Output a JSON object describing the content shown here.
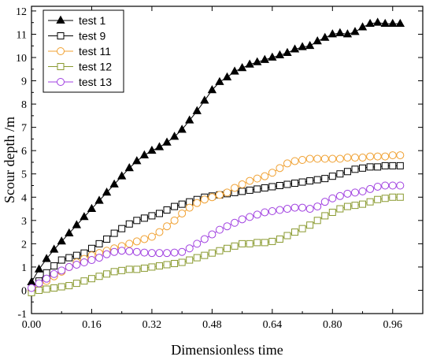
{
  "chart_data": {
    "type": "line",
    "title": "",
    "xlabel": "Dimensionless time",
    "ylabel": "Scour depth /m",
    "xlim": [
      0,
      1.04
    ],
    "ylim": [
      -1,
      12.2
    ],
    "xticks": [
      0.0,
      0.16,
      0.32,
      0.48,
      0.64,
      0.8,
      0.96
    ],
    "xtick_labels": [
      "0.00",
      "0.16",
      "0.32",
      "0.48",
      "0.64",
      "0.80",
      "0.96"
    ],
    "yticks": [
      -1,
      0,
      1,
      2,
      3,
      4,
      5,
      6,
      7,
      8,
      9,
      10,
      11,
      12
    ],
    "ytick_labels": [
      "-1",
      "0",
      "1",
      "2",
      "3",
      "4",
      "5",
      "6",
      "7",
      "8",
      "9",
      "10",
      "11",
      "12"
    ],
    "grid": false,
    "legend_position": "top-left",
    "series": [
      {
        "name": "test 1",
        "color": "#000000",
        "marker": "triangle-filled",
        "x": [
          0.0,
          0.02,
          0.04,
          0.06,
          0.08,
          0.1,
          0.12,
          0.14,
          0.16,
          0.18,
          0.2,
          0.22,
          0.24,
          0.26,
          0.28,
          0.3,
          0.32,
          0.34,
          0.36,
          0.38,
          0.4,
          0.42,
          0.44,
          0.46,
          0.48,
          0.5,
          0.52,
          0.54,
          0.56,
          0.58,
          0.6,
          0.62,
          0.64,
          0.66,
          0.68,
          0.7,
          0.72,
          0.74,
          0.76,
          0.78,
          0.8,
          0.82,
          0.84,
          0.86,
          0.88,
          0.9,
          0.92,
          0.94,
          0.96,
          0.98
        ],
        "y": [
          0.35,
          0.9,
          1.35,
          1.75,
          2.1,
          2.45,
          2.8,
          3.15,
          3.5,
          3.85,
          4.2,
          4.55,
          4.9,
          5.25,
          5.55,
          5.8,
          6.0,
          6.15,
          6.35,
          6.6,
          6.9,
          7.3,
          7.7,
          8.15,
          8.6,
          8.95,
          9.15,
          9.4,
          9.55,
          9.7,
          9.8,
          9.9,
          10.0,
          10.1,
          10.2,
          10.35,
          10.45,
          10.5,
          10.7,
          10.85,
          11.0,
          11.05,
          11.0,
          11.1,
          11.3,
          11.45,
          11.5,
          11.45,
          11.45,
          11.45
        ]
      },
      {
        "name": "test 9",
        "color": "#000000",
        "marker": "square-open",
        "x": [
          0.0,
          0.02,
          0.04,
          0.06,
          0.08,
          0.1,
          0.12,
          0.14,
          0.16,
          0.18,
          0.2,
          0.22,
          0.24,
          0.26,
          0.28,
          0.3,
          0.32,
          0.34,
          0.36,
          0.38,
          0.4,
          0.42,
          0.44,
          0.46,
          0.48,
          0.5,
          0.52,
          0.54,
          0.56,
          0.58,
          0.6,
          0.62,
          0.64,
          0.66,
          0.68,
          0.7,
          0.72,
          0.74,
          0.76,
          0.78,
          0.8,
          0.82,
          0.84,
          0.86,
          0.88,
          0.9,
          0.92,
          0.94,
          0.96,
          0.98
        ],
        "y": [
          0.0,
          0.4,
          0.75,
          1.05,
          1.3,
          1.4,
          1.5,
          1.6,
          1.8,
          2.0,
          2.2,
          2.45,
          2.65,
          2.85,
          3.0,
          3.1,
          3.2,
          3.3,
          3.45,
          3.6,
          3.7,
          3.8,
          3.9,
          4.0,
          4.05,
          4.1,
          4.15,
          4.2,
          4.25,
          4.3,
          4.35,
          4.4,
          4.45,
          4.5,
          4.55,
          4.6,
          4.65,
          4.7,
          4.75,
          4.8,
          4.9,
          5.0,
          5.1,
          5.2,
          5.25,
          5.3,
          5.3,
          5.35,
          5.35,
          5.35
        ]
      },
      {
        "name": "test 11",
        "color": "#f0a030",
        "marker": "circle-open",
        "x": [
          0.0,
          0.02,
          0.04,
          0.06,
          0.08,
          0.1,
          0.12,
          0.14,
          0.16,
          0.18,
          0.2,
          0.22,
          0.24,
          0.26,
          0.28,
          0.3,
          0.32,
          0.34,
          0.36,
          0.38,
          0.4,
          0.42,
          0.44,
          0.46,
          0.48,
          0.5,
          0.52,
          0.54,
          0.56,
          0.58,
          0.6,
          0.62,
          0.64,
          0.66,
          0.68,
          0.7,
          0.72,
          0.74,
          0.76,
          0.78,
          0.8,
          0.82,
          0.84,
          0.86,
          0.88,
          0.9,
          0.92,
          0.94,
          0.96,
          0.98
        ],
        "y": [
          0.0,
          0.2,
          0.4,
          0.6,
          0.8,
          1.0,
          1.2,
          1.35,
          1.5,
          1.6,
          1.7,
          1.8,
          1.9,
          2.0,
          2.1,
          2.2,
          2.3,
          2.5,
          2.75,
          3.0,
          3.3,
          3.55,
          3.75,
          3.9,
          4.0,
          4.1,
          4.2,
          4.4,
          4.55,
          4.7,
          4.8,
          4.9,
          5.05,
          5.25,
          5.45,
          5.55,
          5.6,
          5.65,
          5.65,
          5.65,
          5.65,
          5.65,
          5.7,
          5.7,
          5.7,
          5.75,
          5.75,
          5.75,
          5.8,
          5.8
        ]
      },
      {
        "name": "test 12",
        "color": "#8a9a30",
        "marker": "square-open",
        "x": [
          0.0,
          0.02,
          0.04,
          0.06,
          0.08,
          0.1,
          0.12,
          0.14,
          0.16,
          0.18,
          0.2,
          0.22,
          0.24,
          0.26,
          0.28,
          0.3,
          0.32,
          0.34,
          0.36,
          0.38,
          0.4,
          0.42,
          0.44,
          0.46,
          0.48,
          0.5,
          0.52,
          0.54,
          0.56,
          0.58,
          0.6,
          0.62,
          0.64,
          0.66,
          0.68,
          0.7,
          0.72,
          0.74,
          0.76,
          0.78,
          0.8,
          0.82,
          0.84,
          0.86,
          0.88,
          0.9,
          0.92,
          0.94,
          0.96,
          0.98
        ],
        "y": [
          -0.1,
          0.0,
          0.05,
          0.1,
          0.15,
          0.2,
          0.3,
          0.4,
          0.5,
          0.6,
          0.7,
          0.8,
          0.85,
          0.9,
          0.9,
          0.95,
          1.0,
          1.05,
          1.1,
          1.15,
          1.2,
          1.3,
          1.4,
          1.5,
          1.6,
          1.7,
          1.8,
          1.9,
          2.0,
          2.0,
          2.05,
          2.05,
          2.1,
          2.2,
          2.35,
          2.5,
          2.65,
          2.8,
          3.0,
          3.2,
          3.35,
          3.5,
          3.6,
          3.65,
          3.7,
          3.8,
          3.9,
          3.95,
          4.0,
          4.0
        ]
      },
      {
        "name": "test 13",
        "color": "#a040e0",
        "marker": "circle-open",
        "x": [
          0.0,
          0.02,
          0.04,
          0.06,
          0.08,
          0.1,
          0.12,
          0.14,
          0.16,
          0.18,
          0.2,
          0.22,
          0.24,
          0.26,
          0.28,
          0.3,
          0.32,
          0.34,
          0.36,
          0.38,
          0.4,
          0.42,
          0.44,
          0.46,
          0.48,
          0.5,
          0.52,
          0.54,
          0.56,
          0.58,
          0.6,
          0.62,
          0.64,
          0.66,
          0.68,
          0.7,
          0.72,
          0.74,
          0.76,
          0.78,
          0.8,
          0.82,
          0.84,
          0.86,
          0.88,
          0.9,
          0.92,
          0.94,
          0.96,
          0.98
        ],
        "y": [
          0.1,
          0.3,
          0.5,
          0.7,
          0.85,
          1.0,
          1.1,
          1.2,
          1.3,
          1.4,
          1.55,
          1.65,
          1.7,
          1.68,
          1.65,
          1.62,
          1.6,
          1.6,
          1.6,
          1.62,
          1.65,
          1.8,
          2.0,
          2.2,
          2.4,
          2.6,
          2.75,
          2.9,
          3.05,
          3.15,
          3.25,
          3.35,
          3.4,
          3.45,
          3.5,
          3.55,
          3.55,
          3.5,
          3.6,
          3.8,
          3.95,
          4.05,
          4.15,
          4.2,
          4.25,
          4.35,
          4.45,
          4.5,
          4.5,
          4.5
        ]
      }
    ]
  }
}
